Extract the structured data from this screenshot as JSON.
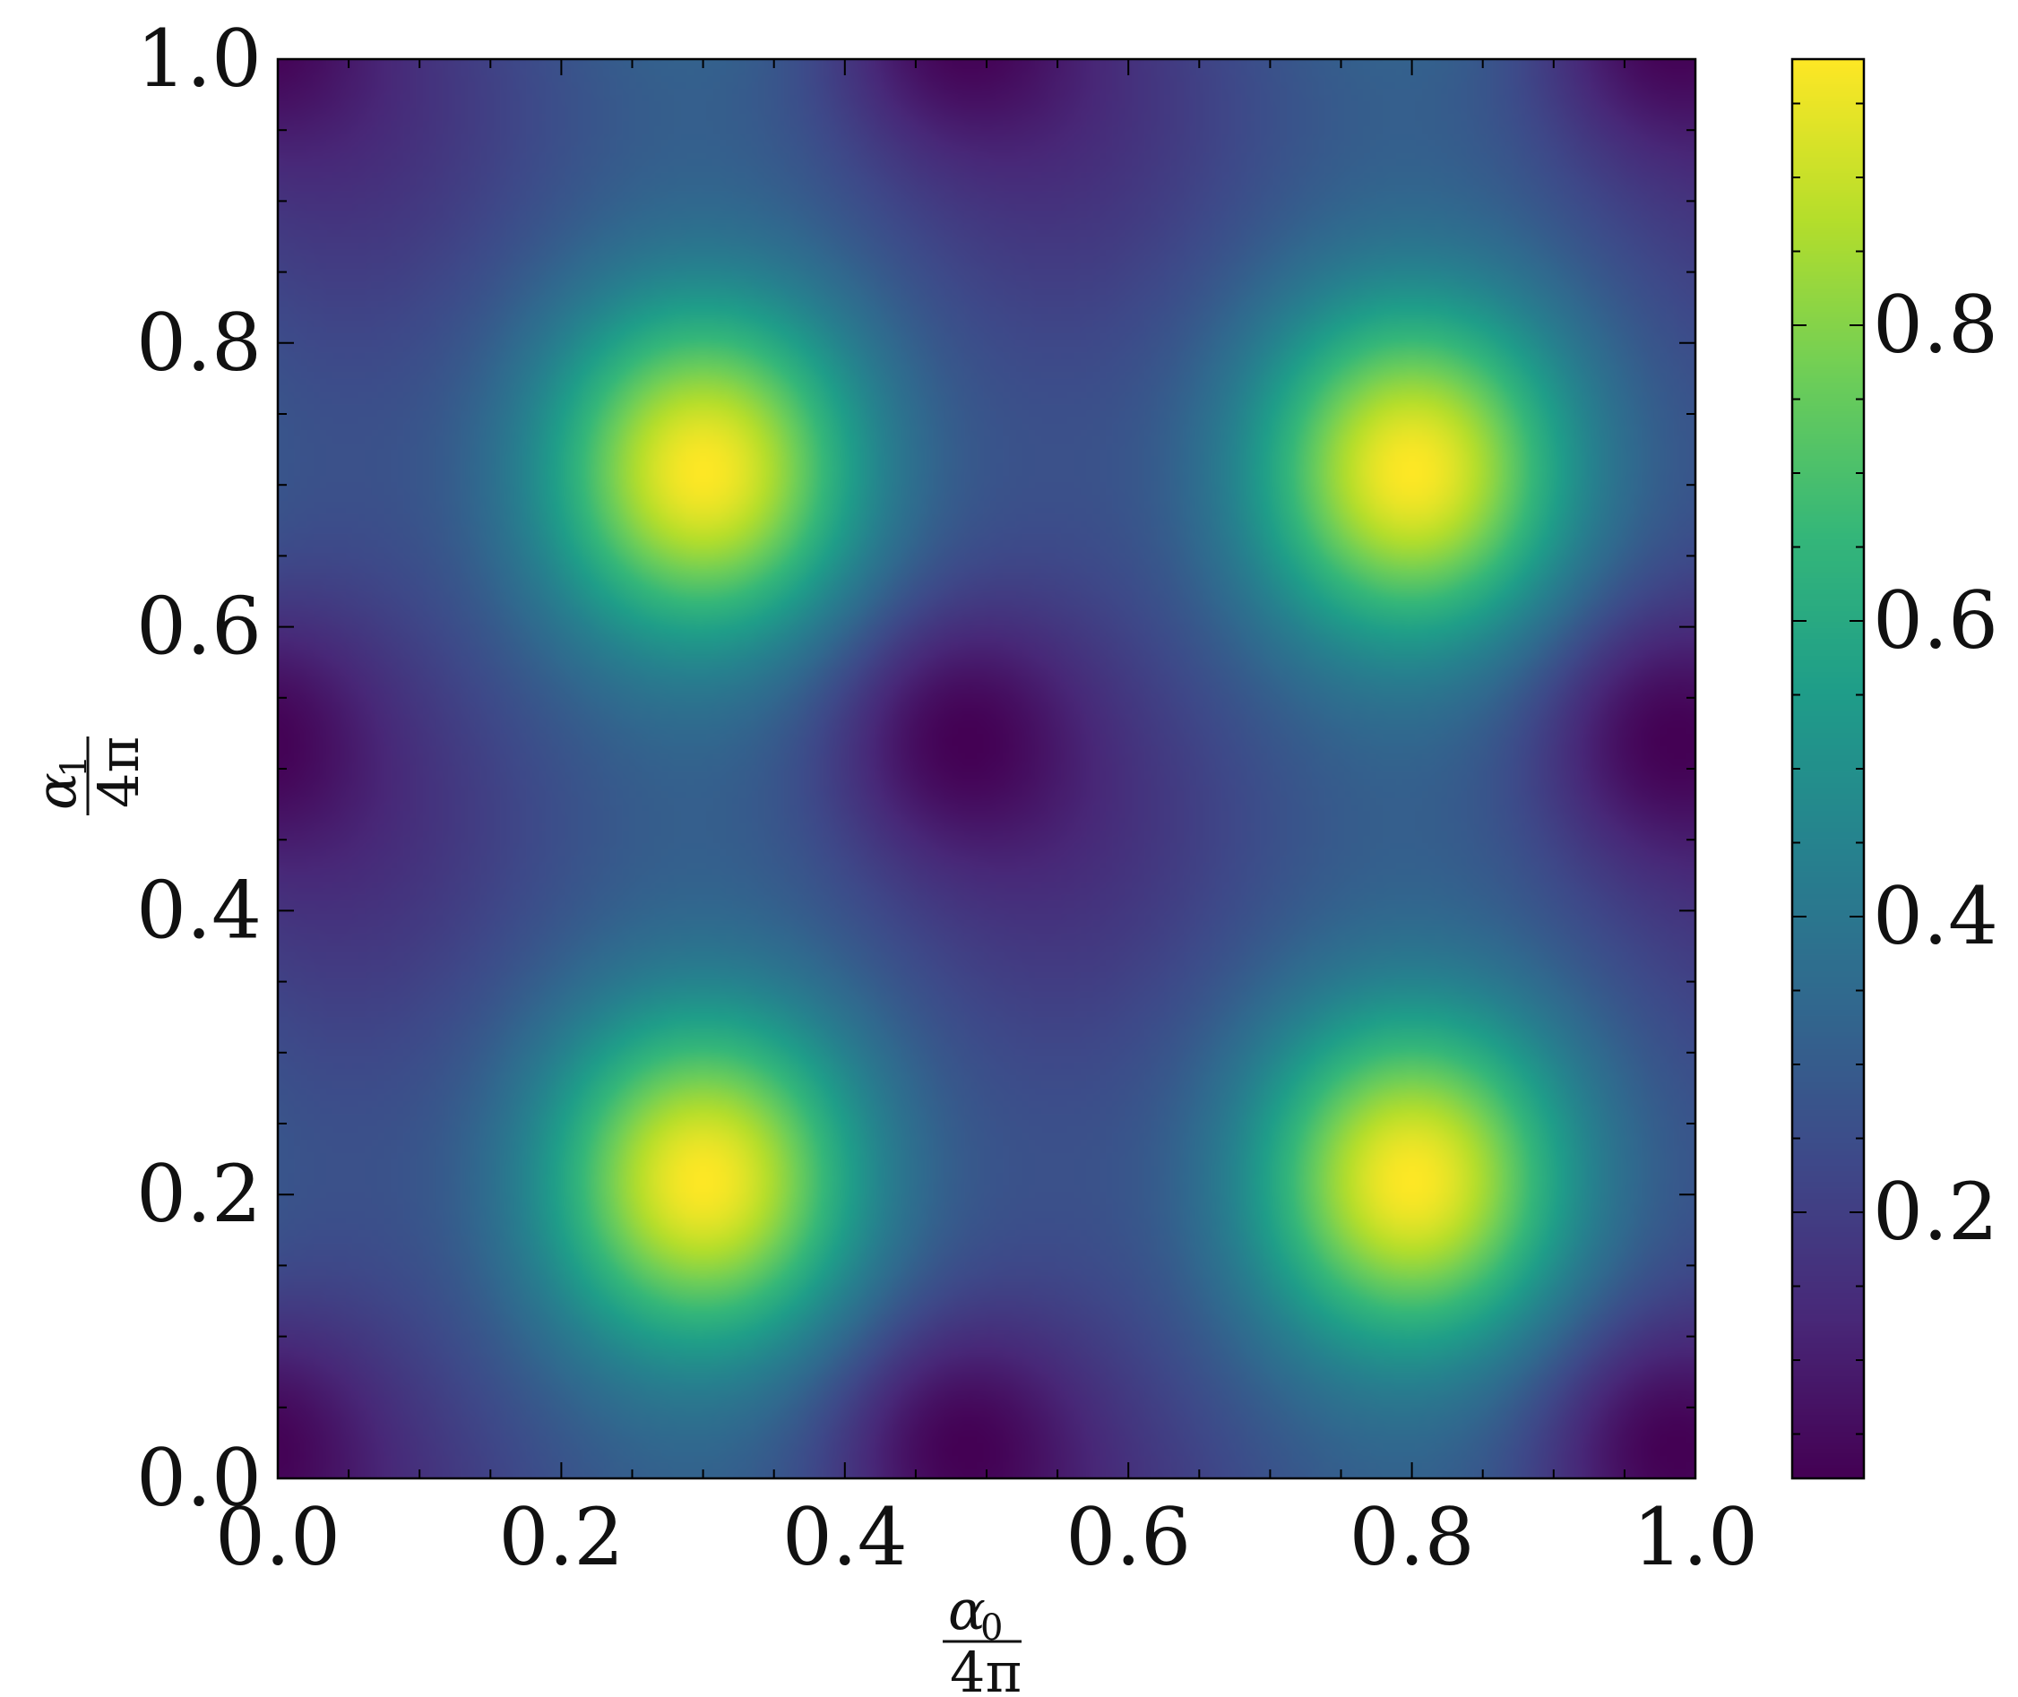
{
  "chart_data": {
    "type": "heatmap",
    "title": "",
    "colormap": "viridis",
    "colormap_stops": [
      "#440154",
      "#482878",
      "#3e4989",
      "#31688e",
      "#26828e",
      "#1f9e89",
      "#35b779",
      "#6ece58",
      "#b5de2b",
      "#fde725"
    ],
    "xlabel": {
      "numerator_symbol": "α",
      "numerator_subscript": "0",
      "denominator": "4π"
    },
    "ylabel": {
      "numerator_symbol": "α",
      "numerator_subscript": "1",
      "denominator": "4π"
    },
    "xlim": [
      0.0,
      1.0
    ],
    "ylim": [
      0.0,
      1.0
    ],
    "xticks": [
      "0.0",
      "0.2",
      "0.4",
      "0.6",
      "0.8",
      "1.0"
    ],
    "yticks": [
      "0.0",
      "0.2",
      "0.4",
      "0.6",
      "0.8",
      "1.0"
    ],
    "colorbar": {
      "range": [
        0.02,
        0.98
      ],
      "ticks": [
        "0.2",
        "0.4",
        "0.6",
        "0.8"
      ],
      "tick_values": [
        0.2,
        0.4,
        0.6,
        0.8
      ]
    },
    "grid": false,
    "pattern": {
      "description_values": "periodic pattern with period 0.5 in x and y",
      "peaks": [
        {
          "x": 0.3,
          "y": 0.71,
          "value": 0.97
        },
        {
          "x": 0.78,
          "y": 0.71,
          "value": 0.97
        },
        {
          "x": 0.3,
          "y": 0.21,
          "value": 0.97
        },
        {
          "x": 0.78,
          "y": 0.21,
          "value": 0.97
        }
      ],
      "minima": [
        {
          "x": 0.0,
          "y": 0.53,
          "value": 0.05
        },
        {
          "x": 0.47,
          "y": 0.53,
          "value": 0.02
        },
        {
          "x": 0.96,
          "y": 0.53,
          "value": 0.02
        },
        {
          "x": 0.0,
          "y": 0.05,
          "value": 0.05
        },
        {
          "x": 0.47,
          "y": 0.05,
          "value": 0.02
        },
        {
          "x": 0.96,
          "y": 0.05,
          "value": 0.02
        },
        {
          "x": 0.47,
          "y": 1.0,
          "value": 0.05
        },
        {
          "x": 0.96,
          "y": 1.0,
          "value": 0.05
        },
        {
          "x": 0.0,
          "y": 1.0,
          "value": 0.08
        }
      ]
    }
  }
}
